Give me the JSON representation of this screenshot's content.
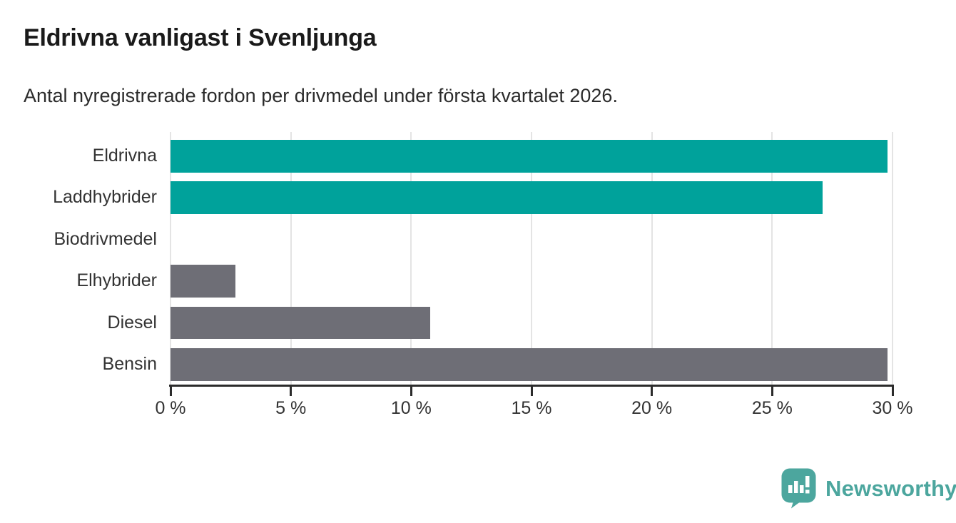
{
  "header": {
    "title": "Eldrivna vanligast i Svenljunga",
    "subtitle": "Antal nyregistrerade fordon per drivmedel under första kvartalet 2026."
  },
  "chart_data": {
    "type": "bar",
    "orientation": "horizontal",
    "title": "Eldrivna vanligast i Svenljunga",
    "subtitle": "Antal nyregistrerade fordon per drivmedel under första kvartalet 2026.",
    "categories": [
      "Eldrivna",
      "Laddhybrider",
      "Biodrivmedel",
      "Elhybrider",
      "Diesel",
      "Bensin"
    ],
    "values": [
      29.8,
      27.1,
      0,
      2.7,
      10.8,
      29.8
    ],
    "bar_colors": [
      "#00a29b",
      "#00a29b",
      "#6e6e76",
      "#6e6e76",
      "#6e6e76",
      "#6e6e76"
    ],
    "xlabel": "",
    "ylabel": "",
    "xlim": [
      0,
      30
    ],
    "x_ticks": [
      0,
      5,
      10,
      15,
      20,
      25,
      30
    ],
    "x_tick_labels": [
      "0 %",
      "5 %",
      "10 %",
      "15 %",
      "20 %",
      "25 %",
      "30 %"
    ],
    "grid": "vertical-gridlines-on",
    "legend": "none"
  },
  "colors": {
    "teal": "#00a29b",
    "gray": "#6e6e76",
    "axis": "#2b2b2b",
    "gridline": "#e4e4e4",
    "title_text": "#1a1a1a",
    "body_text": "#333333",
    "brand_teal": "#4ca69e"
  },
  "footer": {
    "brand": "Newsworthy"
  }
}
